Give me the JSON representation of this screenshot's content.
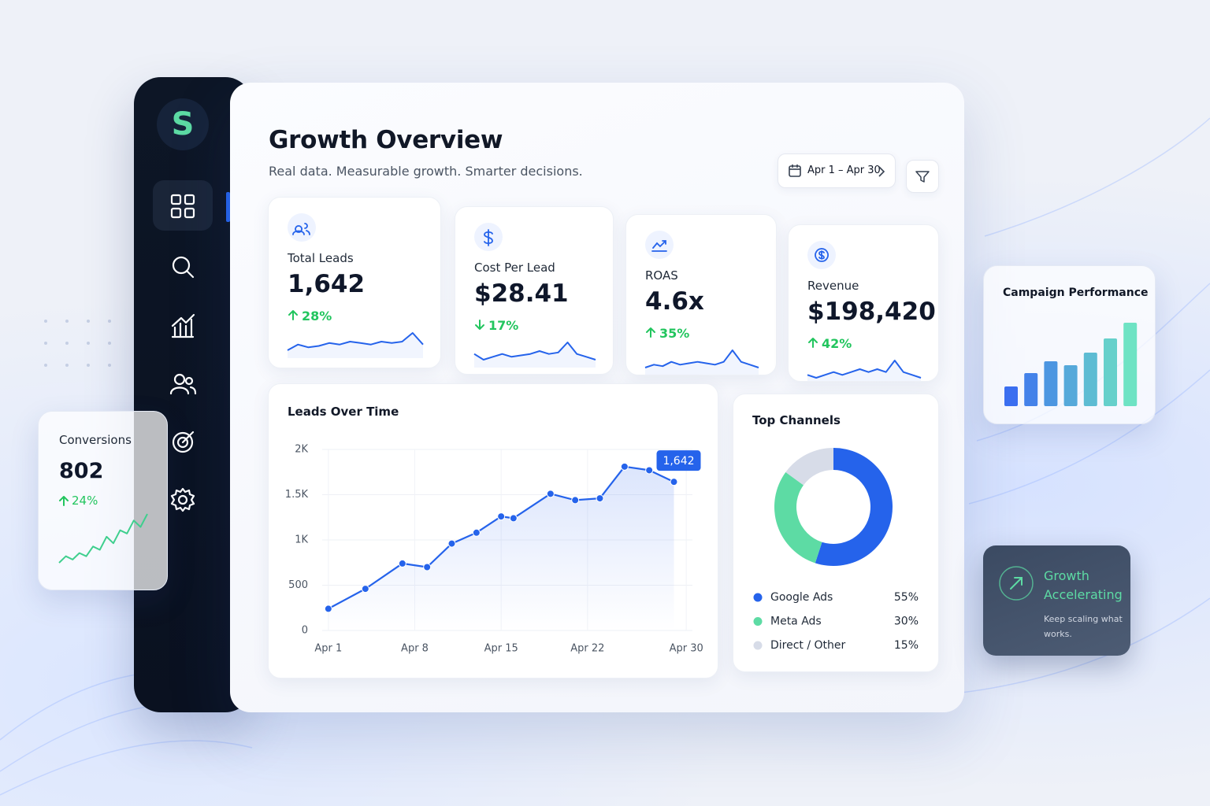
{
  "brand": {
    "logo": "S"
  },
  "header": {
    "title": "Growth Overview",
    "subtitle": "Real data. Measurable growth. Smarter decisions.",
    "date_range": "Apr 1 – Apr 30"
  },
  "kpis": [
    {
      "label": "Total Leads",
      "value": "1,642",
      "change": "28%",
      "trend": "up",
      "sparkline": [
        3,
        5,
        4,
        4.5,
        5.5,
        5,
        6,
        5.5,
        5,
        6,
        5.5,
        6,
        9,
        5
      ]
    },
    {
      "label": "Cost Per Lead",
      "value": "$28.41",
      "change": "17%",
      "trend": "down",
      "sparkline": [
        5,
        3,
        4,
        5,
        4,
        4.5,
        5,
        6,
        5,
        5.5,
        9,
        5,
        4,
        3
      ]
    },
    {
      "label": "ROAS",
      "value": "4.6x",
      "change": "35%",
      "trend": "up",
      "sparkline": [
        2,
        3,
        2.5,
        4,
        3,
        3.5,
        4,
        3.5,
        3,
        4,
        8,
        4,
        3,
        2
      ]
    },
    {
      "label": "Revenue",
      "value": "$198,420",
      "change": "42%",
      "trend": "up",
      "sparkline": [
        3,
        2,
        3,
        4,
        3,
        4,
        5,
        4,
        5,
        4,
        8,
        4,
        3,
        2
      ]
    }
  ],
  "leads_chart": {
    "type": "line",
    "title": "Leads Over Time",
    "x": [
      1,
      4,
      7,
      9,
      11,
      13,
      15,
      16,
      19,
      21,
      23,
      25,
      27,
      29
    ],
    "values": [
      240,
      460,
      740,
      700,
      960,
      1080,
      1260,
      1240,
      1510,
      1440,
      1460,
      1810,
      1770,
      1642
    ],
    "value_labels": [
      null,
      null,
      null,
      null,
      null,
      null,
      null,
      null,
      null,
      null,
      null,
      null,
      null,
      "1,642"
    ],
    "color": "#2563eb",
    "xlim": [
      0.5,
      30.5
    ],
    "xticks": [
      {
        "value": 1,
        "label": "Apr 1"
      },
      {
        "value": 8,
        "label": "Apr 8"
      },
      {
        "value": 15,
        "label": "Apr 15"
      },
      {
        "value": 22,
        "label": "Apr 22"
      },
      {
        "value": 30,
        "label": "Apr 30"
      }
    ],
    "ylim": [
      0,
      2000
    ],
    "yticks": [
      0,
      500,
      {
        "value": 1000,
        "label": "1K"
      },
      {
        "value": 1500,
        "label": "1.5K"
      },
      {
        "value": 2000,
        "label": "2K"
      }
    ],
    "grid": true
  },
  "top_channels": {
    "type": "donut",
    "title": "Top Channels",
    "categories": [
      "Google Ads",
      "Meta Ads",
      "Direct / Other"
    ],
    "values": [
      55,
      30,
      15
    ],
    "value_labels": [
      "55%",
      "30%",
      "15%"
    ],
    "colors": [
      "#2563eb",
      "#5ddba4",
      "#d7dce8"
    ]
  },
  "conversions": {
    "title": "Conversions",
    "value": "802",
    "change": "24%",
    "trend": "up",
    "sparkline": [
      1,
      3,
      2,
      4,
      3,
      6,
      5,
      9,
      7,
      11,
      10,
      14,
      12,
      16
    ]
  },
  "campaign_performance": {
    "type": "bar",
    "title": "Campaign Performance",
    "values": [
      25,
      42,
      57,
      52,
      68,
      86,
      106
    ],
    "color_start": "#3b6ff0",
    "color_end": "#6ee3c4"
  },
  "growth_card": {
    "title": "Growth",
    "highlight": "Accelerating",
    "text": "Keep scaling what works."
  }
}
